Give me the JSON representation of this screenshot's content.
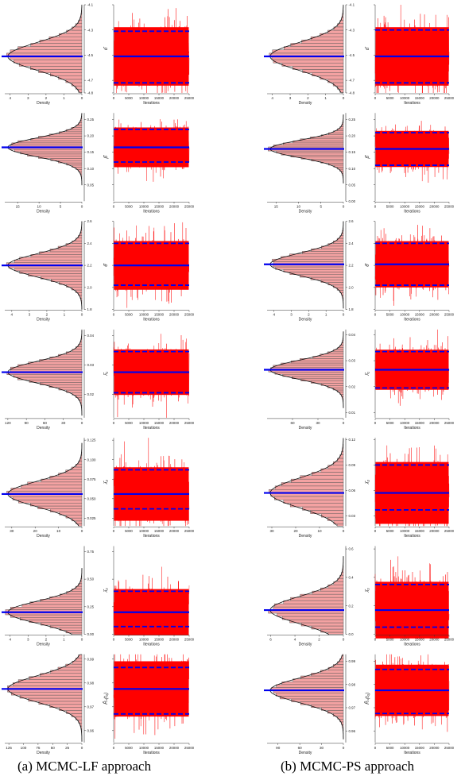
{
  "captions": {
    "left": "(a) MCMC-LF approach",
    "right": "(b) MCMC-PS approach"
  },
  "style": {
    "fill_red": "#ff0000",
    "hist_fill": "#f4a2a2",
    "line_blue": "#0000ee",
    "axis_color": "#333333"
  },
  "axis_text": {
    "density": "Density",
    "iterations": "Iterations"
  },
  "iter_ticks": [
    0,
    5000,
    10000,
    15000,
    20000,
    25000
  ],
  "chart_data": [
    {
      "type": "line",
      "approach": "MCMC-LF",
      "parameter": "α̂",
      "param_label": "α̂",
      "ylim": [
        -4.8,
        -4.1
      ],
      "yticks": [
        -4.8,
        -4.7,
        -4.5,
        -4.3,
        -4.1
      ],
      "ytick_labels": [
        "-4.8",
        "-4.7",
        "-4.5",
        "-4.3",
        "-4.1"
      ],
      "mean": -4.51,
      "ci": [
        -4.72,
        -4.31
      ],
      "density_ticks": [
        4,
        3,
        2,
        1,
        0
      ],
      "density_max": 4.3,
      "x_iterations": [
        0,
        25000
      ]
    },
    {
      "type": "line",
      "approach": "MCMC-PS",
      "parameter": "α̂",
      "param_label": "α̂",
      "ylim": [
        -4.8,
        -4.1
      ],
      "yticks": [
        -4.8,
        -4.7,
        -4.5,
        -4.3,
        -4.1
      ],
      "ytick_labels": [
        "-4.8",
        "-4.7",
        "-4.5",
        "-4.3",
        "-4.1"
      ],
      "mean": -4.51,
      "ci": [
        -4.72,
        -4.3
      ],
      "density_ticks": [
        4,
        3,
        2,
        1,
        0
      ],
      "density_max": 4.3,
      "x_iterations": [
        0,
        25000
      ]
    },
    {
      "type": "line",
      "approach": "MCMC-LF",
      "parameter": "β̂",
      "param_label": "β̂",
      "ylim": [
        0.0,
        0.27
      ],
      "yticks": [
        0.05,
        0.1,
        0.15,
        0.2,
        0.25
      ],
      "ytick_labels": [
        "0.05",
        "0.10",
        "0.15",
        "0.20",
        "0.25"
      ],
      "mean": 0.165,
      "ci": [
        0.12,
        0.22
      ],
      "density_ticks": [
        15,
        10,
        5,
        0
      ],
      "density_max": 18,
      "x_iterations": [
        0,
        25000
      ]
    },
    {
      "type": "line",
      "approach": "MCMC-PS",
      "parameter": "β̂",
      "param_label": "β̂",
      "ylim": [
        0.0,
        0.27
      ],
      "yticks": [
        0.0,
        0.05,
        0.1,
        0.15,
        0.2,
        0.25
      ],
      "ytick_labels": [
        "0.00",
        "0.05",
        "0.10",
        "0.15",
        "0.20",
        "0.25"
      ],
      "mean": 0.16,
      "ci": [
        0.11,
        0.21
      ],
      "density_ticks": [
        15,
        10,
        5,
        0
      ],
      "density_max": 17,
      "x_iterations": [
        0,
        25000
      ]
    },
    {
      "type": "line",
      "approach": "MCMC-LF",
      "parameter": "θ̂",
      "param_label": "θ̂",
      "ylim": [
        1.8,
        2.6
      ],
      "yticks": [
        1.8,
        2.0,
        2.2,
        2.4,
        2.6
      ],
      "ytick_labels": [
        "1.8",
        "2.0",
        "2.2",
        "2.4",
        "2.6"
      ],
      "mean": 2.2,
      "ci": [
        2.02,
        2.4
      ],
      "density_ticks": [
        4,
        3,
        2,
        1,
        0
      ],
      "density_max": 4.4,
      "x_iterations": [
        0,
        25000
      ]
    },
    {
      "type": "line",
      "approach": "MCMC-PS",
      "parameter": "θ̂",
      "param_label": "θ̂",
      "ylim": [
        1.8,
        2.6
      ],
      "yticks": [
        1.8,
        2.0,
        2.2,
        2.4,
        2.6
      ],
      "ytick_labels": [
        "1.8",
        "2.0",
        "2.2",
        "2.4",
        "2.6"
      ],
      "mean": 2.21,
      "ci": [
        2.02,
        2.4
      ],
      "density_ticks": [
        4,
        3,
        2,
        1,
        0
      ],
      "density_max": 4.4,
      "x_iterations": [
        0,
        25000
      ]
    },
    {
      "type": "line",
      "approach": "MCMC-LF",
      "parameter": "λ̂₁",
      "param_label": "λ̂₁",
      "ylim": [
        0.012,
        0.042
      ],
      "yticks": [
        0.02,
        0.03,
        0.04
      ],
      "ytick_labels": [
        "0.02",
        "0.03",
        "0.04"
      ],
      "mean": 0.0275,
      "ci": [
        0.0205,
        0.0345
      ],
      "density_ticks": [
        120,
        90,
        60,
        30,
        0
      ],
      "density_max": 125,
      "x_iterations": [
        0,
        25000
      ]
    },
    {
      "type": "line",
      "approach": "MCMC-PS",
      "parameter": "λ̂₁",
      "param_label": "λ̂₁",
      "ylim": [
        0.008,
        0.042
      ],
      "yticks": [
        0.01,
        0.02,
        0.03,
        0.04
      ],
      "ytick_labels": [
        "0.01",
        "0.02",
        "0.03",
        "0.04"
      ],
      "mean": 0.0265,
      "ci": [
        0.0195,
        0.0335
      ],
      "density_ticks": [
        60,
        30,
        0
      ],
      "density_max": 90,
      "x_iterations": [
        0,
        25000
      ]
    },
    {
      "type": "line",
      "approach": "MCMC-LF",
      "parameter": "λ̂₂",
      "param_label": "λ̂₂",
      "ylim": [
        0.015,
        0.128
      ],
      "yticks": [
        0.025,
        0.05,
        0.075,
        0.1,
        0.125
      ],
      "ytick_labels": [
        "0.025",
        "0.050",
        "0.075",
        "0.100",
        "0.125"
      ],
      "mean": 0.056,
      "ci": [
        0.037,
        0.087
      ],
      "density_ticks": [
        30,
        20,
        10,
        0
      ],
      "density_max": 33,
      "x_iterations": [
        0,
        25000
      ]
    },
    {
      "type": "line",
      "approach": "MCMC-PS",
      "parameter": "λ̂₂",
      "param_label": "λ̂₂",
      "ylim": [
        0.018,
        0.122
      ],
      "yticks": [
        0.03,
        0.06,
        0.09,
        0.12
      ],
      "ytick_labels": [
        "0.03",
        "0.06",
        "0.09",
        "0.12"
      ],
      "mean": 0.057,
      "ci": [
        0.037,
        0.09
      ],
      "density_ticks": [
        30,
        20,
        10,
        0
      ],
      "density_max": 32,
      "x_iterations": [
        0,
        25000
      ]
    },
    {
      "type": "line",
      "approach": "MCMC-LF",
      "parameter": "λ̂₃",
      "param_label": "λ̂₃",
      "ylim": [
        0.0,
        0.8
      ],
      "yticks": [
        0.0,
        0.25,
        0.5,
        0.75
      ],
      "ytick_labels": [
        "0.00",
        "0.25",
        "0.50",
        "0.75"
      ],
      "mean": 0.2,
      "ci": [
        0.07,
        0.39
      ],
      "density_ticks": [
        4,
        3,
        2,
        1,
        0
      ],
      "density_max": 4.3,
      "x_iterations": [
        0,
        25000
      ]
    },
    {
      "type": "line",
      "approach": "MCMC-PS",
      "parameter": "λ̂₃",
      "param_label": "λ̂₃",
      "ylim": [
        0.0,
        0.62
      ],
      "yticks": [
        0.0,
        0.2,
        0.4,
        0.6
      ],
      "ytick_labels": [
        "0.0",
        "0.2",
        "0.4",
        "0.6"
      ],
      "mean": 0.17,
      "ci": [
        0.05,
        0.35
      ],
      "density_ticks": [
        6,
        4,
        2,
        0
      ],
      "density_max": 6.3,
      "x_iterations": [
        0,
        25000
      ]
    },
    {
      "type": "line",
      "approach": "MCMC-LF",
      "parameter": "R̂_s(t₀)",
      "param_label": "R̂ₛ(t₀)",
      "ylim": [
        0.955,
        0.992
      ],
      "yticks": [
        0.96,
        0.97,
        0.98,
        0.99
      ],
      "ytick_labels": [
        "0.96",
        "0.97",
        "0.98",
        "0.99"
      ],
      "mean": 0.9775,
      "ci": [
        0.967,
        0.9865
      ],
      "density_ticks": [
        125,
        100,
        75,
        50,
        25,
        0
      ],
      "density_max": 132,
      "x_iterations": [
        0,
        25000
      ]
    },
    {
      "type": "line",
      "approach": "MCMC-PS",
      "parameter": "R̂_s(t₀)",
      "param_label": "R̂ₛ(t₀)",
      "ylim": [
        0.955,
        0.993
      ],
      "yticks": [
        0.96,
        0.97,
        0.98,
        0.99
      ],
      "ytick_labels": [
        "0.96",
        "0.97",
        "0.98",
        "0.99"
      ],
      "mean": 0.9775,
      "ci": [
        0.9675,
        0.9865
      ],
      "density_ticks": [
        90,
        60,
        30,
        0
      ],
      "density_max": 105,
      "x_iterations": [
        0,
        25000
      ]
    }
  ]
}
